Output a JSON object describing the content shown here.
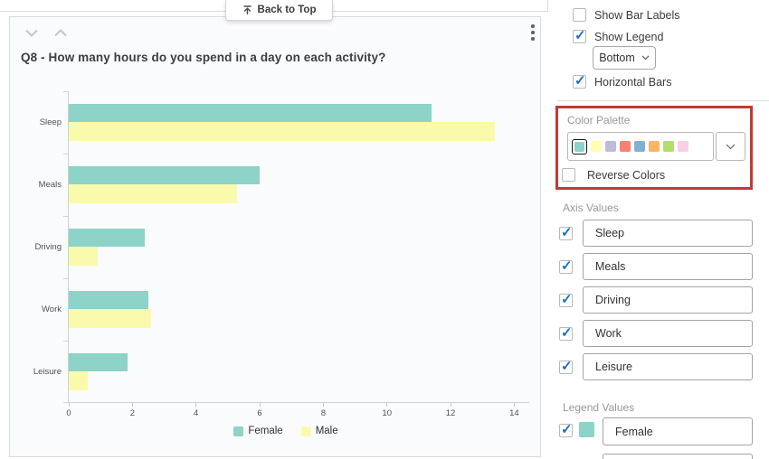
{
  "back_to_top": {
    "label": "Back to Top"
  },
  "chart_card": {
    "title": "Q8 - How many hours do you spend in a day on each activity?"
  },
  "chart_data": {
    "type": "bar",
    "orientation": "horizontal",
    "title": "Q8 - How many hours do you spend in a day on each activity?",
    "categories": [
      "Sleep",
      "Meals",
      "Driving",
      "Work",
      "Leisure"
    ],
    "series": [
      {
        "name": "Female",
        "color": "#8DD3C7",
        "values": [
          11.4,
          6.0,
          2.4,
          2.5,
          1.85
        ]
      },
      {
        "name": "Male",
        "color": "#FAFAAD",
        "values": [
          13.4,
          5.3,
          0.9,
          2.6,
          0.6
        ]
      }
    ],
    "x_ticks": [
      0,
      2,
      4,
      6,
      8,
      10,
      12,
      14
    ],
    "xlim": [
      0,
      14.5
    ],
    "xlabel": "",
    "ylabel": "",
    "grid": false,
    "legend_position": "bottom"
  },
  "panel": {
    "show_bar_labels": {
      "label": "Show Bar Labels",
      "checked": false
    },
    "show_legend": {
      "label": "Show Legend",
      "checked": true
    },
    "legend_position_dropdown": {
      "value": "Bottom"
    },
    "horizontal_bars": {
      "label": "Horizontal Bars",
      "checked": true
    },
    "color_palette": {
      "label": "Color Palette",
      "swatches": [
        "#8DD3C7",
        "#FFFFB3",
        "#BEBADA",
        "#FB8072",
        "#80B1D3",
        "#FDB462",
        "#B3DE69",
        "#FCCDE5"
      ],
      "selected_index": 0,
      "highlight_border_color": "#C03A34"
    },
    "reverse_colors": {
      "label": "Reverse Colors",
      "checked": false
    },
    "axis_values": {
      "label": "Axis Values",
      "items": [
        {
          "label": "Sleep",
          "checked": true
        },
        {
          "label": "Meals",
          "checked": true
        },
        {
          "label": "Driving",
          "checked": true
        },
        {
          "label": "Work",
          "checked": true
        },
        {
          "label": "Leisure",
          "checked": true
        }
      ]
    },
    "legend_values": {
      "label": "Legend Values",
      "items": [
        {
          "label": "Female",
          "checked": true,
          "color": "#8DD3C7"
        }
      ]
    }
  },
  "colors": {
    "check_blue": "#1A6FC4",
    "highlight_red": "#C03A34",
    "card_background": "#FAFBFC"
  }
}
